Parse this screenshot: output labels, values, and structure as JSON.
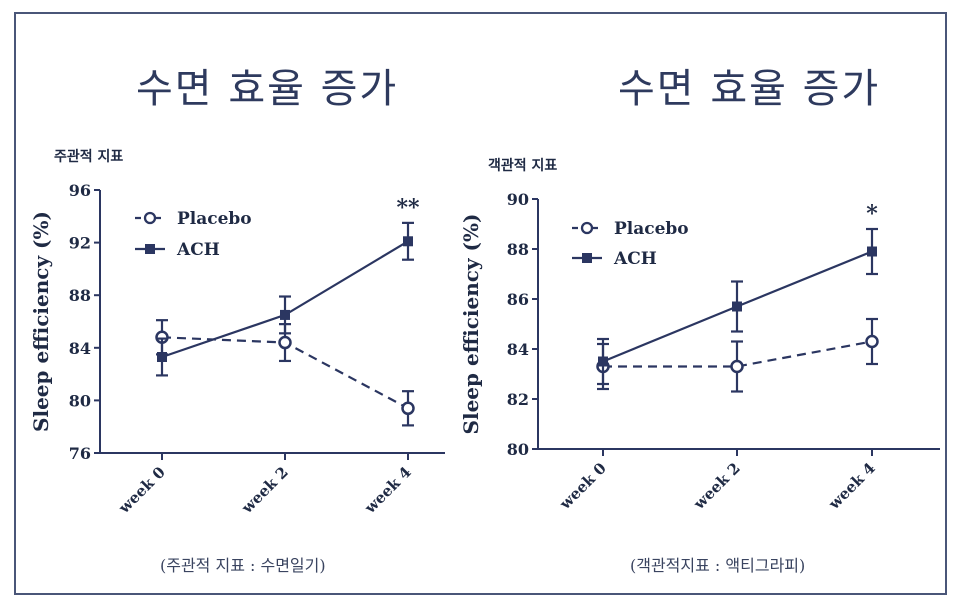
{
  "panels": [
    {
      "title": "수면 효율 증가",
      "sub_label": "주관적 지표",
      "caption": "(주관적 지표 : 수면일기)"
    },
    {
      "title": "수면 효율 증가",
      "sub_label": "객관적 지표",
      "caption": "(객관적지표 : 액티그라피)"
    }
  ],
  "colors": {
    "series": "#2b3661",
    "frame": "#4a5678",
    "axis": "#2b3661"
  },
  "chart_data": [
    {
      "type": "line",
      "categories": [
        "week 0",
        "week 2",
        "week 4"
      ],
      "ylabel": "Sleep efficiency (%)",
      "xlabel": "",
      "ylim": [
        76,
        96
      ],
      "yticks": [
        76,
        80,
        84,
        88,
        92,
        96
      ],
      "legend": "top-left",
      "series": [
        {
          "name": "Placebo",
          "values": [
            84.8,
            84.4,
            79.4
          ],
          "err": [
            1.3,
            1.4,
            1.3
          ],
          "style": "dashed",
          "marker": "open-circle"
        },
        {
          "name": "ACH",
          "values": [
            83.3,
            86.5,
            92.1
          ],
          "err": [
            1.4,
            1.4,
            1.4
          ],
          "style": "solid",
          "marker": "filled-square"
        }
      ],
      "annotations": [
        {
          "category": "week 4",
          "text": "**"
        }
      ]
    },
    {
      "type": "line",
      "categories": [
        "week 0",
        "week 2",
        "week 4"
      ],
      "ylabel": "Sleep efficiency (%)",
      "xlabel": "",
      "ylim": [
        80,
        90
      ],
      "yticks": [
        80,
        82,
        84,
        86,
        88,
        90
      ],
      "legend": "top-left",
      "series": [
        {
          "name": "Placebo",
          "values": [
            83.3,
            83.3,
            84.3
          ],
          "err": [
            0.9,
            1.0,
            0.9
          ],
          "style": "dashed",
          "marker": "open-circle"
        },
        {
          "name": "ACH",
          "values": [
            83.5,
            85.7,
            87.9
          ],
          "err": [
            0.9,
            1.0,
            0.9
          ],
          "style": "solid",
          "marker": "filled-square"
        }
      ],
      "annotations": [
        {
          "category": "week 4",
          "text": "*"
        }
      ]
    }
  ]
}
